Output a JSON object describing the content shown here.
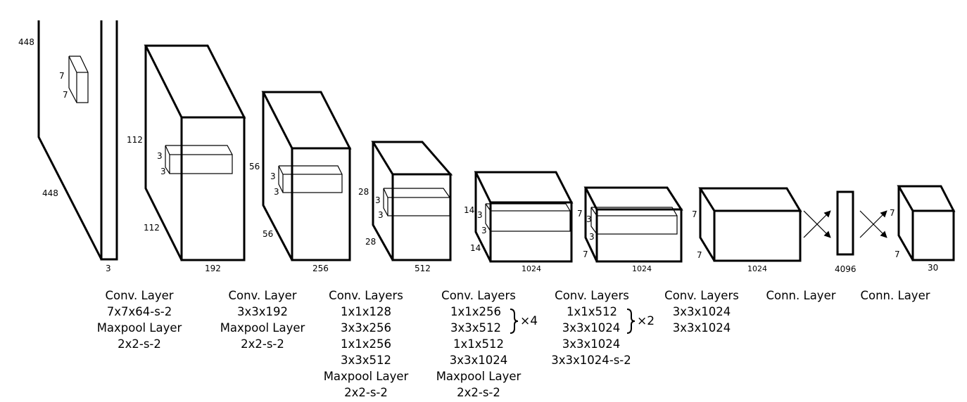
{
  "dims": {
    "input_h": "448",
    "input_w": "448",
    "input_c": "3",
    "k1a": "7",
    "k1b": "7",
    "b2_h": "112",
    "b2_w": "112",
    "b2_c": "192",
    "k2a": "3",
    "k2b": "3",
    "b3_h": "56",
    "b3_w": "56",
    "b3_c": "256",
    "k3a": "3",
    "k3b": "3",
    "b4_h": "28",
    "b4_w": "28",
    "b4_c": "512",
    "k4a": "3",
    "k4b": "3",
    "b5_h": "14",
    "b5_w": "14",
    "b5_c": "1024",
    "k5a": "3",
    "k5b": "3",
    "b6_h": "7",
    "b6_w": "7",
    "b6_c": "1024",
    "k6a": "3",
    "k6b": "3",
    "b7_h": "7",
    "b7_w": "7",
    "b7_c": "1024",
    "fc_c": "4096",
    "out_h": "7",
    "out_w": "7",
    "out_c": "30"
  },
  "captions": [
    {
      "lines": [
        "Conv. Layer",
        "7x7x64-s-2",
        "Maxpool Layer",
        "2x2-s-2"
      ]
    },
    {
      "lines": [
        "Conv. Layer",
        "3x3x192",
        "Maxpool Layer",
        "2x2-s-2"
      ]
    },
    {
      "lines": [
        "Conv. Layers",
        "1x1x128",
        "3x3x256",
        "1x1x256",
        "3x3x512",
        "Maxpool Layer",
        "2x2-s-2"
      ]
    },
    {
      "lines": [
        "Conv. Layers",
        "1x1x256",
        "3x3x512",
        "1x1x512",
        "3x3x1024",
        "Maxpool Layer",
        "2x2-s-2"
      ],
      "repeat": "×4"
    },
    {
      "lines": [
        "Conv. Layers",
        "1x1x512",
        "3x3x1024",
        "3x3x1024",
        "3x3x1024-s-2"
      ],
      "repeat": "×2"
    },
    {
      "lines": [
        "Conv. Layers",
        "3x3x1024",
        "3x3x1024"
      ]
    },
    {
      "lines": [
        "Conn. Layer"
      ]
    },
    {
      "lines": [
        "Conn. Layer"
      ]
    }
  ]
}
